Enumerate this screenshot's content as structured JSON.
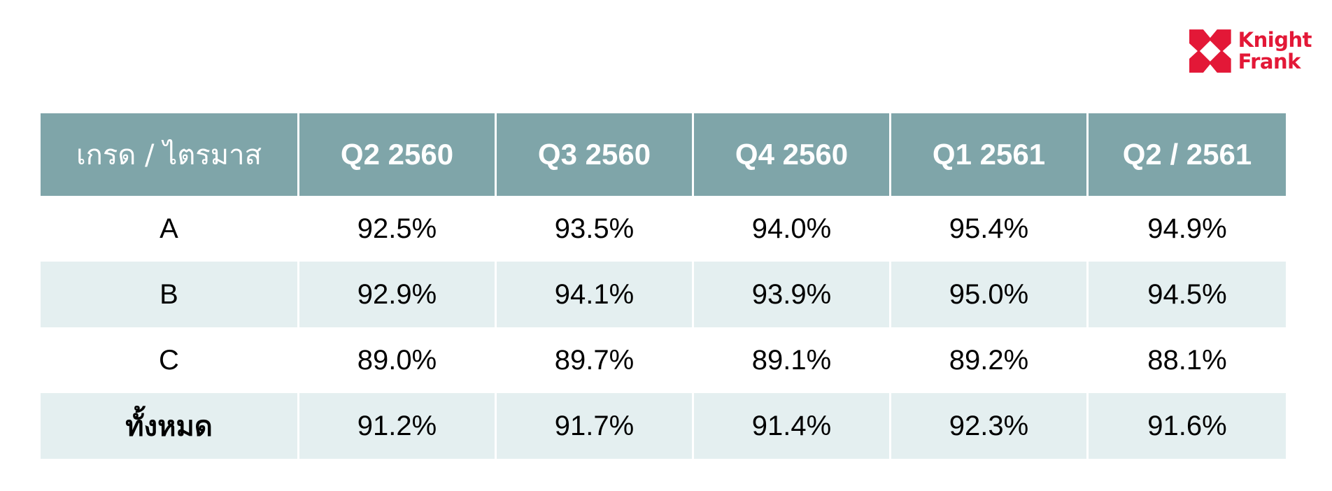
{
  "brand": {
    "line1": "Knight",
    "line2": "Frank",
    "logo_color": "#e31837"
  },
  "table": {
    "header_color": "#7fa5a9",
    "stripe_color": "#e4eff0",
    "columns": [
      "เกรด / ไตรมาส",
      "Q2 2560",
      "Q3 2560",
      "Q4 2560",
      "Q1 2561",
      "Q2 / 2561"
    ],
    "rows": [
      {
        "label": "A",
        "values": [
          "92.5%",
          "93.5%",
          "94.0%",
          "95.4%",
          "94.9%"
        ]
      },
      {
        "label": "B",
        "values": [
          "92.9%",
          "94.1%",
          "93.9%",
          "95.0%",
          "94.5%"
        ]
      },
      {
        "label": "C",
        "values": [
          "89.0%",
          "89.7%",
          "89.1%",
          "89.2%",
          "88.1%"
        ]
      },
      {
        "label": "ทั้งหมด",
        "values": [
          "91.2%",
          "91.7%",
          "91.4%",
          "92.3%",
          "91.6%"
        ]
      }
    ]
  }
}
